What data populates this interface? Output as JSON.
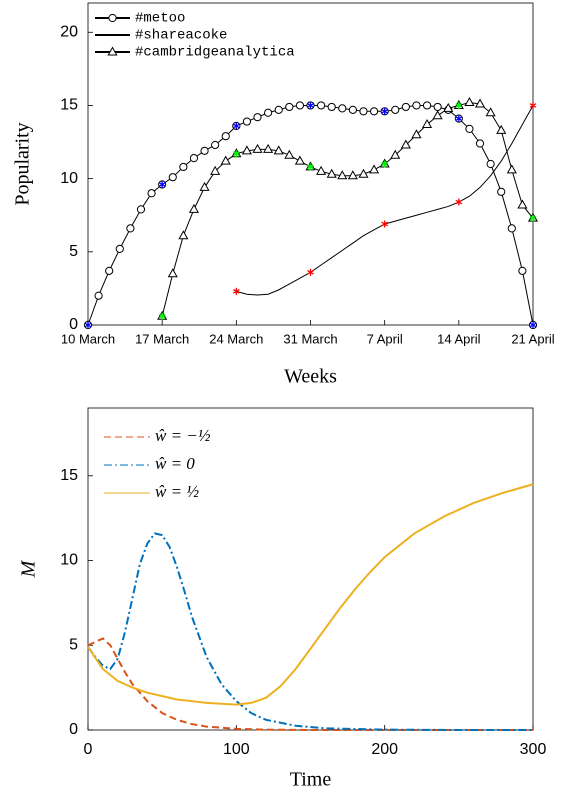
{
  "chart_data": [
    {
      "type": "line",
      "xlabel": "Weeks",
      "ylabel": "Popularity",
      "xlim": [
        0,
        42
      ],
      "ylim": [
        0,
        22
      ],
      "xticks": [
        {
          "value": 0,
          "label": "10 March"
        },
        {
          "value": 7,
          "label": "17 March"
        },
        {
          "value": 14,
          "label": "24 March"
        },
        {
          "value": 21,
          "label": "31 March"
        },
        {
          "value": 28,
          "label": "7 April"
        },
        {
          "value": 35,
          "label": "14 April"
        },
        {
          "value": 42,
          "label": "21 April"
        }
      ],
      "yticks": [
        0,
        5,
        10,
        15,
        20
      ],
      "legend": "upper-left",
      "x": [
        0,
        1,
        2,
        3,
        4,
        5,
        6,
        7,
        8,
        9,
        10,
        11,
        12,
        13,
        14,
        15,
        16,
        17,
        18,
        19,
        20,
        21,
        22,
        23,
        24,
        25,
        26,
        27,
        28,
        29,
        30,
        31,
        32,
        33,
        34,
        35,
        36,
        37,
        38,
        39,
        40,
        41,
        42
      ],
      "series": [
        {
          "name": "#metoo",
          "color": "#000000",
          "marker": "circle",
          "star_color": "#0000ff",
          "values": [
            0,
            2.0,
            3.7,
            5.2,
            6.6,
            7.9,
            9.0,
            9.6,
            10.1,
            10.8,
            11.4,
            11.9,
            12.3,
            12.9,
            13.6,
            13.9,
            14.2,
            14.5,
            14.7,
            14.9,
            15.0,
            15.0,
            15.0,
            14.9,
            14.8,
            14.7,
            14.6,
            14.6,
            14.6,
            14.7,
            14.9,
            15.0,
            15.0,
            14.9,
            14.7,
            14.1,
            13.4,
            12.4,
            11.0,
            9.1,
            6.6,
            3.7,
            0
          ]
        },
        {
          "name": "#shareacoke",
          "color": "#000000",
          "marker": "none",
          "star_color": "#ff0000",
          "values": [
            null,
            null,
            null,
            null,
            null,
            null,
            null,
            null,
            null,
            null,
            null,
            null,
            null,
            null,
            2.3,
            2.1,
            2.05,
            2.1,
            2.4,
            2.8,
            3.2,
            3.6,
            4.1,
            4.6,
            5.1,
            5.6,
            6.1,
            6.5,
            6.9,
            7.1,
            7.3,
            7.5,
            7.7,
            7.9,
            8.1,
            8.4,
            8.8,
            9.4,
            10.2,
            11.2,
            12.4,
            13.7,
            15.0
          ]
        },
        {
          "name": "#cambridgeanalytica",
          "color": "#000000",
          "marker": "triangle",
          "star_color": "#00ee00",
          "values": [
            null,
            null,
            null,
            null,
            null,
            null,
            null,
            0.6,
            3.5,
            6.1,
            7.9,
            9.4,
            10.5,
            11.2,
            11.7,
            11.9,
            12.0,
            12.0,
            11.9,
            11.6,
            11.2,
            10.8,
            10.5,
            10.3,
            10.2,
            10.2,
            10.3,
            10.6,
            11.0,
            11.6,
            12.3,
            13.0,
            13.7,
            14.3,
            14.8,
            15.0,
            15.2,
            15.1,
            14.5,
            13.3,
            10.6,
            8.2,
            7.3
          ]
        }
      ]
    },
    {
      "type": "line",
      "xlabel": "Time",
      "ylabel": "M",
      "xlim": [
        0,
        300
      ],
      "ylim": [
        0,
        19
      ],
      "xticks": [
        0,
        100,
        200,
        300
      ],
      "yticks": [
        0,
        5,
        10,
        15
      ],
      "legend": "upper-left",
      "series": [
        {
          "name": "ŵ = −½",
          "color": "#d95319",
          "dash": "dashed",
          "x": [
            0,
            5,
            10,
            15,
            20,
            25,
            30,
            40,
            50,
            60,
            70,
            80,
            100,
            120,
            150,
            200,
            300
          ],
          "values": [
            5.0,
            5.2,
            5.4,
            5.0,
            4.2,
            3.4,
            2.7,
            1.7,
            1.0,
            0.6,
            0.35,
            0.2,
            0.07,
            0.02,
            0,
            0,
            0
          ]
        },
        {
          "name": "ŵ = 0",
          "color": "#0072bd",
          "dash": "dashdot",
          "x": [
            0,
            5,
            10,
            15,
            20,
            25,
            30,
            35,
            40,
            45,
            50,
            55,
            60,
            65,
            70,
            80,
            90,
            100,
            110,
            120,
            140,
            160,
            200,
            250,
            300
          ],
          "values": [
            4.9,
            4.3,
            3.8,
            3.6,
            4.2,
            5.8,
            7.8,
            9.8,
            11.0,
            11.6,
            11.5,
            10.8,
            9.6,
            8.2,
            6.7,
            4.3,
            2.7,
            1.7,
            1.0,
            0.6,
            0.25,
            0.1,
            0.02,
            0,
            0
          ]
        },
        {
          "name": "ŵ = ½",
          "color": "#edb120",
          "dash": "solid",
          "x": [
            0,
            10,
            20,
            30,
            40,
            50,
            60,
            70,
            80,
            90,
            100,
            110,
            120,
            130,
            140,
            150,
            160,
            170,
            180,
            190,
            200,
            220,
            240,
            260,
            280,
            300
          ],
          "values": [
            4.9,
            3.6,
            2.9,
            2.5,
            2.2,
            2.0,
            1.8,
            1.7,
            1.6,
            1.55,
            1.5,
            1.6,
            1.9,
            2.6,
            3.6,
            4.8,
            6.0,
            7.2,
            8.3,
            9.3,
            10.2,
            11.6,
            12.6,
            13.4,
            14.0,
            14.5
          ]
        }
      ]
    }
  ]
}
